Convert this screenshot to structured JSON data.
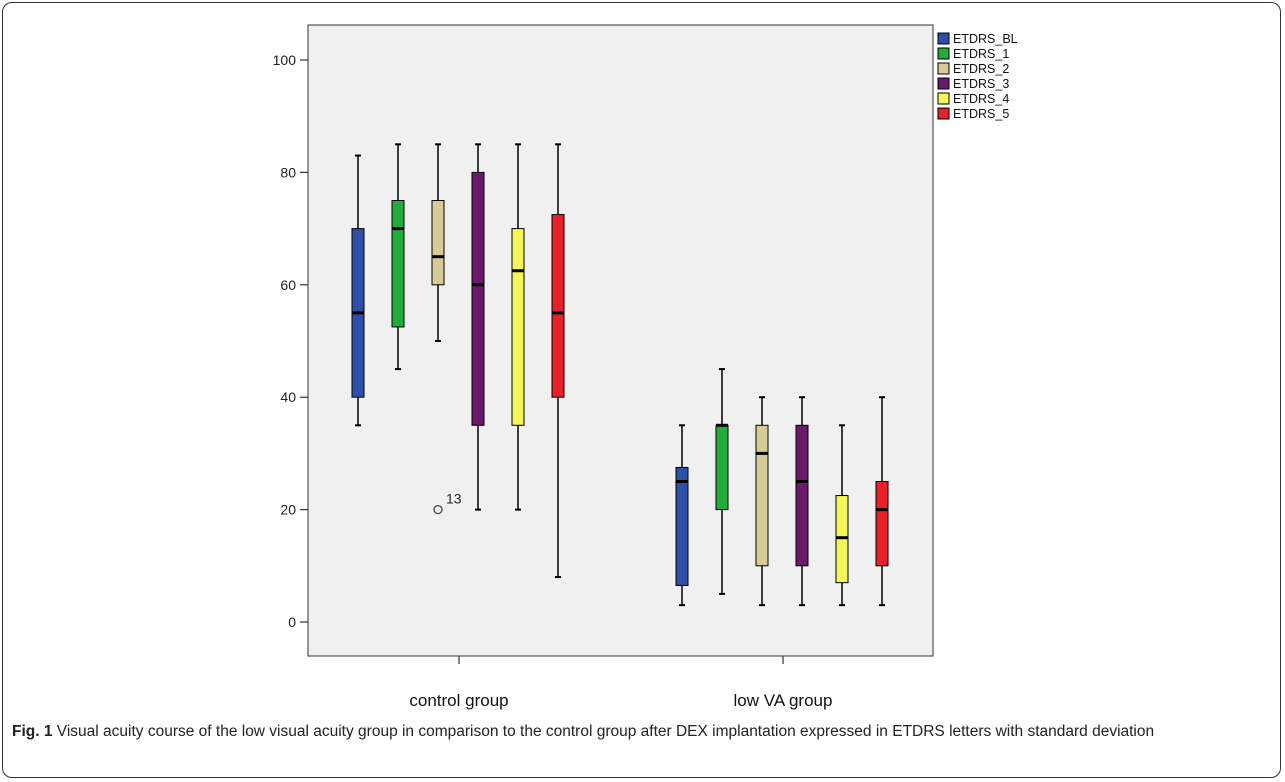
{
  "chart_data": {
    "type": "boxplot",
    "title": "",
    "xlabel": "",
    "ylabel": "",
    "ylim": [
      -6,
      105
    ],
    "yticks": [
      0,
      20,
      40,
      60,
      80,
      100
    ],
    "grid": false,
    "legend_position": "top-right",
    "categories": [
      "control group",
      "low VA group"
    ],
    "series": [
      {
        "name": "ETDRS_BL",
        "color": "#2e4fa8",
        "boxes": [
          {
            "whisker_low": 35,
            "q1": 40,
            "median": 55,
            "q3": 70,
            "whisker_high": 83,
            "outliers": []
          },
          {
            "whisker_low": 3,
            "q1": 6.5,
            "median": 25,
            "q3": 27.5,
            "whisker_high": 35,
            "outliers": []
          }
        ]
      },
      {
        "name": "ETDRS_1",
        "color": "#22ac3a",
        "boxes": [
          {
            "whisker_low": 45,
            "q1": 52.5,
            "median": 70,
            "q3": 75,
            "whisker_high": 85,
            "outliers": []
          },
          {
            "whisker_low": 5,
            "q1": 20,
            "median": 35,
            "q3": 35,
            "whisker_high": 45,
            "outliers": []
          }
        ]
      },
      {
        "name": "ETDRS_2",
        "color": "#d7cc96",
        "boxes": [
          {
            "whisker_low": 50,
            "q1": 60,
            "median": 65,
            "q3": 75,
            "whisker_high": 85,
            "outliers": [
              {
                "value": 20,
                "label": "13"
              }
            ]
          },
          {
            "whisker_low": 3,
            "q1": 10,
            "median": 30,
            "q3": 35,
            "whisker_high": 40,
            "outliers": []
          }
        ]
      },
      {
        "name": "ETDRS_3",
        "color": "#6b1a6b",
        "boxes": [
          {
            "whisker_low": 20,
            "q1": 35,
            "median": 60,
            "q3": 80,
            "whisker_high": 85,
            "outliers": []
          },
          {
            "whisker_low": 3,
            "q1": 10,
            "median": 25,
            "q3": 35,
            "whisker_high": 40,
            "outliers": []
          }
        ]
      },
      {
        "name": "ETDRS_4",
        "color": "#f5f55a",
        "boxes": [
          {
            "whisker_low": 20,
            "q1": 35,
            "median": 62.5,
            "q3": 70,
            "whisker_high": 85,
            "outliers": []
          },
          {
            "whisker_low": 3,
            "q1": 7,
            "median": 15,
            "q3": 22.5,
            "whisker_high": 35,
            "outliers": []
          }
        ]
      },
      {
        "name": "ETDRS_5",
        "color": "#e8202a",
        "boxes": [
          {
            "whisker_low": 8,
            "q1": 40,
            "median": 55,
            "q3": 72.5,
            "whisker_high": 85,
            "outliers": []
          },
          {
            "whisker_low": 3,
            "q1": 10,
            "median": 20,
            "q3": 25,
            "whisker_high": 40,
            "outliers": []
          }
        ]
      }
    ]
  },
  "caption": {
    "label": "Fig. 1",
    "text": " Visual acuity course of the low visual acuity group in comparison to the control group after DEX implantation expressed in ETDRS letters with standard deviation"
  }
}
